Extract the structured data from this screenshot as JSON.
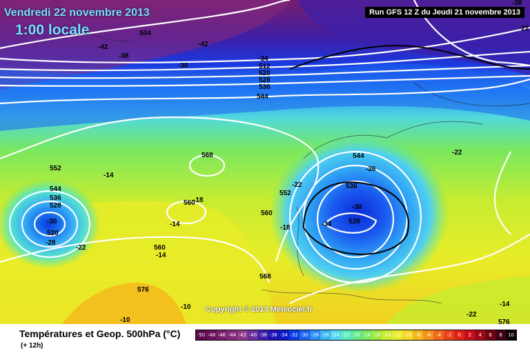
{
  "header": {
    "date": "Vendredi 22 novembre 2013",
    "local_time": "1:00 locale",
    "run": "Run GFS 12 Z du Jeudi 21 novembre 2013"
  },
  "copyright": "Copyright © 2013 Meteociel.fr",
  "footer": {
    "title": "Températures et Geop. 500hPa (°C)",
    "subtitle": "(+ 12h)"
  },
  "legend": {
    "values": [
      "-50",
      "-48",
      "-46",
      "-44",
      "-42",
      "-40",
      "-38",
      "-36",
      "-34",
      "-32",
      "-30",
      "-28",
      "-26",
      "-24",
      "-22",
      "-20",
      "-18",
      "-16",
      "-14",
      "-12",
      "-10",
      "-8",
      "-6",
      "-4",
      "-2",
      "0",
      "2",
      "4",
      "6",
      "8",
      "10"
    ],
    "colors": [
      "#5a0a4a",
      "#6b0f5b",
      "#7a1d6c",
      "#852a7b",
      "#8e3a8a",
      "#6a2f9c",
      "#3c1fa8",
      "#1c10b5",
      "#0a1ac8",
      "#0a3ae0",
      "#1a64f0",
      "#2a8cf5",
      "#3cb4f5",
      "#50d8f0",
      "#5ae8c0",
      "#60e890",
      "#78e860",
      "#a0e840",
      "#c8ec30",
      "#e8ec28",
      "#f5d820",
      "#f5b81c",
      "#f5901a",
      "#f06818",
      "#e84018",
      "#e02418",
      "#c80e18",
      "#a00818",
      "#700414",
      "#400210",
      "#100008"
    ]
  },
  "map_labels": {
    "temperature": [
      "-42",
      "-38",
      "-30",
      "-42",
      "-38",
      "-34",
      "-14",
      "-18",
      "-22",
      "-18",
      "-22",
      "-26",
      "-30",
      "-34",
      "-22",
      "-14",
      "-14",
      "-10",
      "-10",
      "-14",
      "-28",
      "-22",
      "-30",
      "-22"
    ],
    "geopotential": [
      "504",
      "512",
      "520",
      "528",
      "536",
      "544",
      "552",
      "544",
      "536",
      "528",
      "520",
      "568",
      "560",
      "552",
      "560",
      "560",
      "568",
      "576",
      "544",
      "536",
      "528",
      "576"
    ]
  }
}
